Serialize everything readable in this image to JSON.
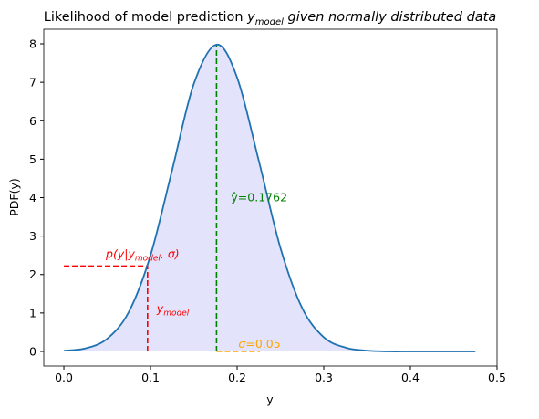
{
  "chart_data": {
    "type": "line",
    "title": {
      "lead": "Likelihood of model prediction ",
      "symbol": "y",
      "subscript": "model",
      "tail": " given normally distributed data"
    },
    "x_label": "y",
    "y_label": "PDF(y)",
    "x": [
      0,
      0.025,
      0.05,
      0.075,
      0.1,
      0.125,
      0.15,
      0.1762,
      0.2,
      0.225,
      0.25,
      0.275,
      0.3,
      0.325,
      0.35,
      0.375,
      0.4,
      0.425,
      0.45,
      0.475
    ],
    "series": [
      {
        "color": "#1f72b0",
        "fill": "#e3e3fb",
        "values": [
          0.02,
          0.08,
          0.33,
          1.03,
          2.5,
          4.72,
          6.96,
          7.98,
          7.12,
          4.96,
          2.69,
          1.13,
          0.37,
          0.1,
          0.02,
          0,
          0,
          0,
          0,
          0
        ]
      }
    ],
    "xlim": [
      -0.0232,
      0.5
    ],
    "ylim": [
      -0.38,
      8.38
    ],
    "xticks": [
      {
        "value": 0,
        "label": "0.0"
      },
      0.1,
      0.2,
      0.3,
      0.4,
      0.5
    ],
    "yticks": [
      0,
      1,
      2,
      3,
      4,
      5,
      6,
      7,
      8
    ],
    "y_hat": {
      "x": 0.1762,
      "pdf": 7.98,
      "color": "green",
      "prefix": "ŷ=",
      "value": 0.1762
    },
    "sigma": {
      "value": 0.05,
      "color": "orange",
      "prefix": "σ="
    },
    "y_model": {
      "x": 0.0966,
      "pdf": 2.22,
      "color": "red",
      "label": {
        "symbol": "y",
        "subscript": "model"
      },
      "likelihood_label": {
        "lead": "p(y|y",
        "subscript": "model",
        "tail": ", σ)"
      }
    }
  }
}
